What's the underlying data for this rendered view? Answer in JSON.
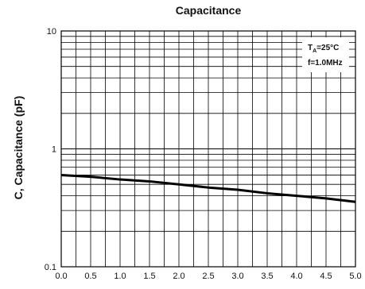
{
  "chart_data": {
    "type": "line",
    "title": "Capacitance",
    "xlabel": "",
    "ylabel": "C, Capacitance (pF)",
    "yscale": "log",
    "xlim": [
      0.0,
      5.0
    ],
    "ylim": [
      0.1,
      10
    ],
    "x_ticks": [
      "0.0",
      "0.5",
      "1.0",
      "1.5",
      "2.0",
      "2.5",
      "3.0",
      "3.5",
      "4.0",
      "4.5",
      "5.0"
    ],
    "y_ticks": [
      "0.1",
      "1",
      "10"
    ],
    "grid": true,
    "annotations": {
      "temp_prefix": "T",
      "temp_sub": "A",
      "temp_value": "=25°C",
      "freq": "f=1.0MHz"
    },
    "series": [
      {
        "x": [
          0.0,
          0.5,
          1.0,
          1.5,
          2.0,
          2.5,
          3.0,
          3.5,
          4.0,
          4.5,
          5.0
        ],
        "values": [
          0.6,
          0.58,
          0.55,
          0.53,
          0.5,
          0.47,
          0.45,
          0.42,
          0.4,
          0.38,
          0.355
        ]
      }
    ]
  }
}
